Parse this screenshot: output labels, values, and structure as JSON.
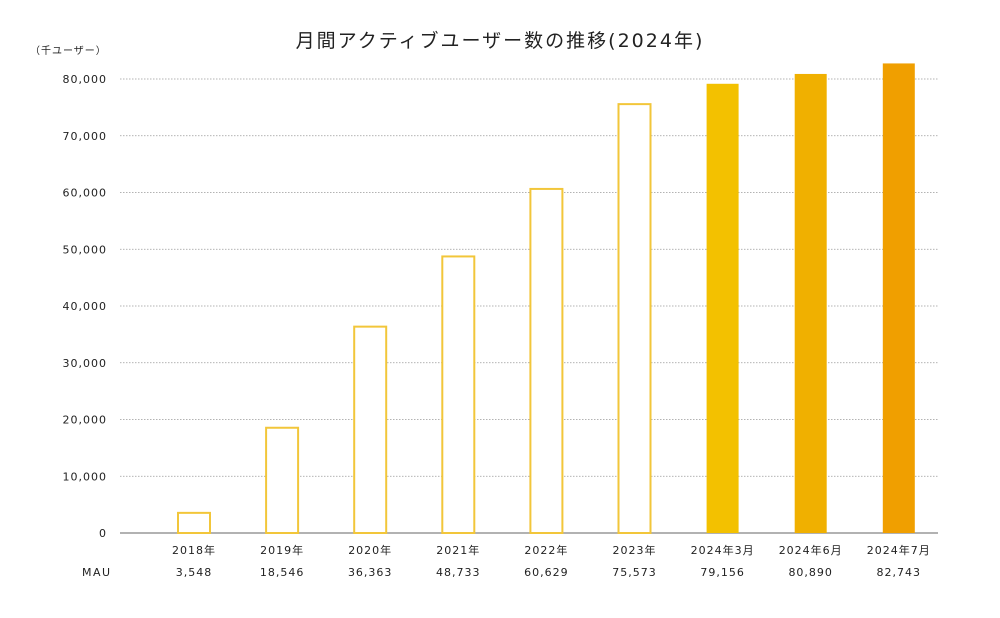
{
  "chart_data": {
    "type": "bar",
    "title": "月間アクティブユーザー数の推移(2024年)",
    "unit_label": "（千ユーザー）",
    "row_label": "MAU",
    "categories": [
      "2018年",
      "2019年",
      "2020年",
      "2021年",
      "2022年",
      "2023年",
      "2024年3月",
      "2024年6月",
      "2024年7月"
    ],
    "values": [
      3548,
      18546,
      36363,
      48733,
      60629,
      75573,
      79156,
      80890,
      82743
    ],
    "value_labels": [
      "3,548",
      "18,546",
      "36,363",
      "48,733",
      "60,629",
      "75,573",
      "79,156",
      "80,890",
      "82,743"
    ],
    "yticks": [
      "0",
      "10,000",
      "20,000",
      "30,000",
      "40,000",
      "50,000",
      "60,000",
      "70,000",
      "80,000"
    ],
    "ylim": [
      0,
      80000
    ],
    "grid": true,
    "colors": {
      "outline": "#f2c63a",
      "fills": [
        "none",
        "none",
        "none",
        "none",
        "none",
        "none",
        "#f3c100",
        "#f0b000",
        "#f09f00"
      ],
      "grid": "#9a9a9a",
      "axis": "#666666"
    }
  }
}
